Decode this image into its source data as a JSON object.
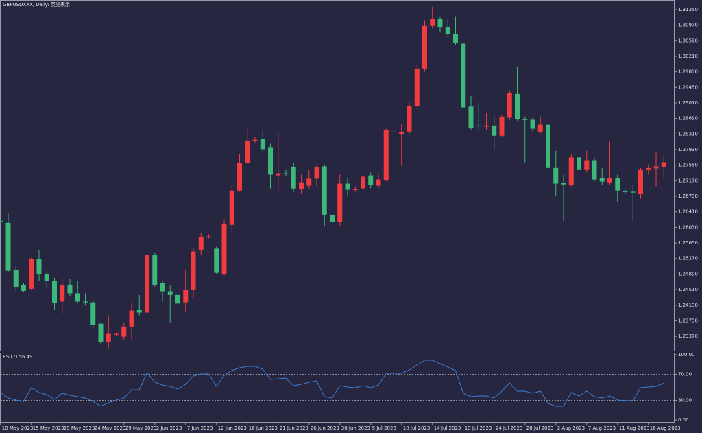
{
  "chart_data": {
    "type": "candlestick",
    "title": "GBPUSDXXX, Daily: 英語表示",
    "up_color": "#f23b3f",
    "down_color": "#3cb878",
    "categories": [
      "10 May 2023",
      null,
      null,
      null,
      "15 May 2023",
      null,
      null,
      null,
      "19 May 2023",
      null,
      null,
      null,
      "24 May 2023",
      null,
      null,
      null,
      "29 May 2023",
      null,
      null,
      null,
      "2 Jun 2023",
      null,
      null,
      null,
      "7 Jun 2023",
      null,
      null,
      null,
      "12 Jun 2023",
      null,
      null,
      null,
      "16 Jun 2023",
      null,
      null,
      null,
      "21 Jun 2023",
      null,
      null,
      null,
      "26 Jun 2023",
      null,
      null,
      null,
      "30 Jun 2023",
      null,
      null,
      null,
      "5 Jul 2023",
      null,
      null,
      null,
      "10 Jul 2023",
      null,
      null,
      null,
      "14 Jul 2023",
      null,
      null,
      null,
      "19 Jul 2023",
      null,
      null,
      null,
      "24 Jul 2023",
      null,
      null,
      null,
      "28 Jul 2023",
      null,
      null,
      null,
      "2 Aug 2023",
      null,
      null,
      null,
      "7 Aug 2023",
      null,
      null,
      null,
      "11 Aug 2023",
      null,
      null,
      null,
      "16 Aug 2023",
      null,
      null
    ],
    "open": [
      1.2619,
      1.2614,
      1.25,
      1.2463,
      1.2453,
      1.2525,
      1.2489,
      1.2472,
      1.2422,
      1.2463,
      1.2442,
      1.2422,
      1.242,
      1.2368,
      1.2324,
      1.2341,
      1.2336,
      1.2361,
      1.2401,
      1.2395,
      1.2536,
      1.2467,
      1.2447,
      1.2438,
      1.242,
      1.245,
      1.2547,
      1.2579,
      1.2551,
      1.2489,
      1.2609,
      1.2693,
      1.276,
      1.2815,
      1.2819,
      1.2799,
      1.273,
      1.2735,
      1.275,
      1.2696,
      1.2705,
      1.2722,
      1.2752,
      1.2634,
      1.2616,
      1.271,
      1.2695,
      1.2698,
      1.273,
      1.2705,
      1.2718,
      1.2836,
      1.2831,
      1.2837,
      1.2899,
      1.2991,
      1.3095,
      1.3112,
      1.3092,
      1.3075,
      1.3052,
      1.2898,
      1.2852,
      1.2849,
      1.2852,
      1.2827,
      1.2871,
      1.2929,
      1.2867,
      1.2866,
      1.2837,
      1.2854,
      1.2748,
      1.2712,
      1.2706,
      1.2774,
      1.2743,
      1.2767,
      1.2723,
      1.2713,
      1.2723,
      1.2691,
      1.269,
      1.2685,
      1.2743,
      1.2747,
      1.275
    ],
    "high": [
      1.2621,
      1.2639,
      1.2509,
      1.2468,
      1.2529,
      1.2547,
      1.2497,
      1.248,
      1.248,
      1.2477,
      1.2472,
      1.2442,
      1.2425,
      1.2371,
      1.2388,
      1.2346,
      1.2371,
      1.2418,
      1.2438,
      1.2539,
      1.2542,
      1.2472,
      1.2463,
      1.2455,
      1.25,
      1.2551,
      1.2589,
      1.2586,
      1.2556,
      1.2623,
      1.2706,
      1.2782,
      1.2849,
      1.2824,
      1.2841,
      1.2807,
      1.2837,
      1.2743,
      1.276,
      1.2732,
      1.2743,
      1.2757,
      1.2757,
      1.2673,
      1.2732,
      1.2723,
      1.2703,
      1.2732,
      1.2737,
      1.2732,
      1.2844,
      1.2849,
      1.2857,
      1.2908,
      1.2999,
      1.3109,
      1.3142,
      1.3117,
      1.3112,
      1.3117,
      1.3055,
      1.2924,
      1.2908,
      1.2882,
      1.2877,
      1.2877,
      1.2938,
      1.2996,
      1.2874,
      1.2871,
      1.2874,
      1.2866,
      1.279,
      1.2732,
      1.2782,
      1.279,
      1.279,
      1.2774,
      1.2748,
      1.2812,
      1.2732,
      1.2696,
      1.2706,
      1.2748,
      1.2757,
      1.2787,
      1.2779
    ],
    "low": [
      1.2614,
      1.2494,
      1.2447,
      1.2445,
      1.245,
      1.2472,
      1.2455,
      1.2401,
      1.2391,
      1.2435,
      1.2418,
      1.2412,
      1.2355,
      1.2318,
      1.2308,
      1.2338,
      1.2328,
      1.2329,
      1.2388,
      1.2391,
      1.2458,
      1.2422,
      1.2371,
      1.2396,
      1.2396,
      1.243,
      1.2536,
      1.2576,
      1.2489,
      1.2485,
      1.2593,
      1.269,
      1.2757,
      1.281,
      1.2787,
      1.2698,
      1.2693,
      1.2727,
      1.269,
      1.2686,
      1.2698,
      1.2703,
      1.2606,
      1.2596,
      1.2606,
      1.2681,
      1.269,
      1.2673,
      1.2698,
      1.2698,
      1.2715,
      1.2831,
      1.2753,
      1.2831,
      1.2891,
      1.2983,
      1.3089,
      1.3079,
      1.3067,
      1.3048,
      1.2894,
      1.2841,
      1.2841,
      1.2841,
      1.2794,
      1.2824,
      1.2864,
      1.2864,
      1.2762,
      1.2837,
      1.2832,
      1.2743,
      1.2681,
      1.2619,
      1.2703,
      1.274,
      1.2737,
      1.2715,
      1.2706,
      1.2706,
      1.2665,
      1.2685,
      1.2618,
      1.2673,
      1.2732,
      1.2703,
      1.2723
    ],
    "close": [
      1.2618,
      1.2497,
      1.2458,
      1.2448,
      1.2525,
      1.2489,
      1.2472,
      1.2418,
      1.2463,
      1.2442,
      1.2422,
      1.242,
      1.2365,
      1.2323,
      1.2343,
      1.2343,
      1.2361,
      1.24,
      1.2395,
      1.2536,
      1.2463,
      1.2447,
      1.2438,
      1.2417,
      1.245,
      1.2544,
      1.2579,
      1.2581,
      1.2492,
      1.2611,
      1.2693,
      1.276,
      1.2815,
      1.2817,
      1.2794,
      1.2732,
      1.2735,
      1.2733,
      1.2698,
      1.2713,
      1.2722,
      1.275,
      1.2634,
      1.2616,
      1.271,
      1.2695,
      1.2696,
      1.2727,
      1.2706,
      1.272,
      1.2841,
      1.2837,
      1.2836,
      1.2899,
      1.2991,
      1.3095,
      1.3112,
      1.3092,
      1.3075,
      1.3053,
      1.2896,
      1.2846,
      1.2851,
      1.2852,
      1.2827,
      1.2872,
      1.2931,
      1.2867,
      1.2866,
      1.2844,
      1.2854,
      1.2748,
      1.271,
      1.2708,
      1.2774,
      1.2743,
      1.2767,
      1.272,
      1.2715,
      1.2723,
      1.2693,
      1.269,
      1.2688,
      1.2743,
      1.2748,
      1.2752,
      1.2762
    ],
    "ylim": [
      1.2302,
      1.3155
    ],
    "yticks": [
      {
        "value": 1.3135,
        "label": "1.31350"
      },
      {
        "value": 1.3097,
        "label": "1.30970"
      },
      {
        "value": 1.3059,
        "label": "1.30590"
      },
      {
        "value": 1.3021,
        "label": "1.30210"
      },
      {
        "value": 1.2983,
        "label": "1.29830"
      },
      {
        "value": 1.2945,
        "label": "1.29450"
      },
      {
        "value": 1.2907,
        "label": "1.29070"
      },
      {
        "value": 1.2869,
        "label": "1.28690"
      },
      {
        "value": 1.2831,
        "label": "1.28310"
      },
      {
        "value": 1.2793,
        "label": "1.27930"
      },
      {
        "value": 1.2755,
        "label": "1.27550"
      },
      {
        "value": 1.2717,
        "label": "1.27170"
      },
      {
        "value": 1.2679,
        "label": "1.26790"
      },
      {
        "value": 1.2641,
        "label": "1.26410"
      },
      {
        "value": 1.2603,
        "label": "1.26030"
      },
      {
        "value": 1.2565,
        "label": "1.25650"
      },
      {
        "value": 1.2527,
        "label": "1.25270"
      },
      {
        "value": 1.2489,
        "label": "1.24890"
      },
      {
        "value": 1.2451,
        "label": "1.24510"
      },
      {
        "value": 1.2413,
        "label": "1.24130"
      },
      {
        "value": 1.2375,
        "label": "1.23750"
      },
      {
        "value": 1.2337,
        "label": "1.23370"
      }
    ],
    "indicator": {
      "type": "line",
      "name": "RSI(7) 56.49",
      "color": "#3d7fd6",
      "values": [
        42.1,
        33.7,
        30.5,
        28.4,
        49.5,
        42.1,
        38.9,
        31.6,
        41.1,
        37.9,
        35.8,
        33.7,
        28.4,
        21.1,
        26.3,
        30.5,
        33.7,
        46.3,
        46.3,
        72.6,
        57.9,
        53.7,
        51.6,
        47.4,
        54.7,
        67.4,
        70.5,
        70.5,
        51.6,
        68.4,
        75.8,
        80.0,
        82.1,
        82.1,
        77.9,
        62.1,
        63.2,
        64.2,
        52.6,
        54.7,
        57.9,
        60.0,
        35.8,
        33.7,
        52.6,
        50.5,
        49.5,
        52.6,
        49.5,
        53.7,
        71.6,
        71.6,
        71.6,
        76.8,
        84.2,
        91.6,
        91.6,
        86.3,
        81.1,
        75.8,
        41.1,
        35.8,
        36.8,
        36.8,
        33.7,
        44.2,
        56.8,
        44.2,
        44.2,
        41.1,
        44.2,
        25.3,
        21.1,
        21.1,
        42.1,
        36.8,
        44.2,
        35.8,
        33.7,
        36.8,
        30.5,
        29.5,
        29.5,
        49.5,
        50.5,
        51.6,
        56.49
      ],
      "ylim": [
        0,
        100
      ],
      "yticks": [
        {
          "value": 100,
          "label": "100.00"
        },
        {
          "value": 70,
          "label": "70.00"
        },
        {
          "value": 30,
          "label": "30.00"
        },
        {
          "value": 0,
          "label": "0.00"
        }
      ],
      "levels": [
        70,
        30
      ]
    }
  }
}
